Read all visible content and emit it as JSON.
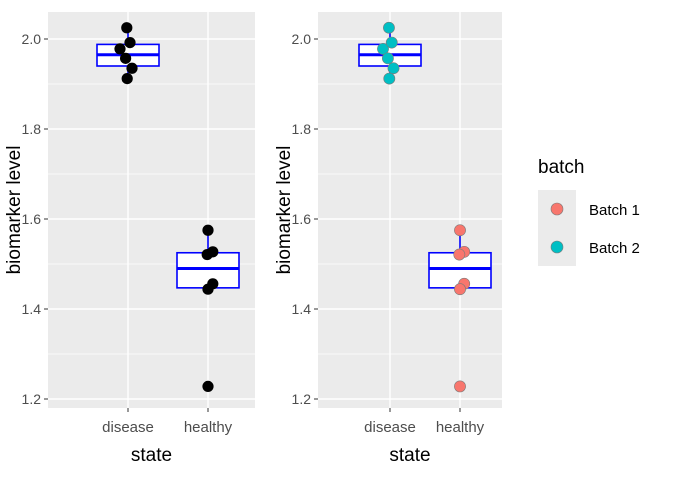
{
  "chart_data": [
    {
      "type": "boxplot",
      "xlabel": "state",
      "ylabel": "biomarker level",
      "categories": [
        "disease",
        "healthy"
      ],
      "ylim": [
        1.18,
        2.06
      ],
      "yticks": [
        1.2,
        1.4,
        1.6,
        1.8,
        2.0
      ],
      "ytick_labels": [
        "1.2",
        "1.4",
        "1.6",
        "1.8",
        "2.0"
      ],
      "boxes": [
        {
          "category": "disease",
          "q1": 1.94,
          "median": 1.965,
          "q3": 1.988,
          "whisker_low": 1.91,
          "whisker_high": 2.025
        },
        {
          "category": "healthy",
          "q1": 1.447,
          "median": 1.49,
          "q3": 1.525,
          "whisker_low": 1.445,
          "whisker_high": 1.575
        }
      ],
      "points": [
        {
          "category": "disease",
          "jitter": -0.03,
          "y": 2.025,
          "batch": "Batch 2"
        },
        {
          "category": "disease",
          "jitter": -0.2,
          "y": 1.978,
          "batch": "Batch 2"
        },
        {
          "category": "disease",
          "jitter": 0.05,
          "y": 1.992,
          "batch": "Batch 2"
        },
        {
          "category": "disease",
          "jitter": -0.06,
          "y": 1.957,
          "batch": "Batch 2"
        },
        {
          "category": "disease",
          "jitter": 0.1,
          "y": 1.935,
          "batch": "Batch 2"
        },
        {
          "category": "disease",
          "jitter": -0.02,
          "y": 1.912,
          "batch": "Batch 2"
        },
        {
          "category": "healthy",
          "jitter": 0.0,
          "y": 1.575,
          "batch": "Batch 1"
        },
        {
          "category": "healthy",
          "jitter": 0.12,
          "y": 1.527,
          "batch": "Batch 1"
        },
        {
          "category": "healthy",
          "jitter": -0.02,
          "y": 1.521,
          "batch": "Batch 1"
        },
        {
          "category": "healthy",
          "jitter": 0.12,
          "y": 1.456,
          "batch": "Batch 1"
        },
        {
          "category": "healthy",
          "jitter": 0.0,
          "y": 1.444,
          "batch": "Batch 1"
        },
        {
          "category": "healthy",
          "jitter": 0.0,
          "y": 1.228,
          "batch": "Batch 1"
        }
      ],
      "colored_by_batch": false,
      "point_color": "#000000",
      "box_color": "#0000ff",
      "panel_bg": "#ebebeb"
    },
    {
      "type": "boxplot",
      "xlabel": "state",
      "ylabel": "biomarker level",
      "categories": [
        "disease",
        "healthy"
      ],
      "ylim": [
        1.18,
        2.06
      ],
      "yticks": [
        1.2,
        1.4,
        1.6,
        1.8,
        2.0
      ],
      "ytick_labels": [
        "1.2",
        "1.4",
        "1.6",
        "1.8",
        "2.0"
      ],
      "boxes": [
        {
          "category": "disease",
          "q1": 1.94,
          "median": 1.965,
          "q3": 1.988,
          "whisker_low": 1.91,
          "whisker_high": 2.025
        },
        {
          "category": "healthy",
          "q1": 1.447,
          "median": 1.49,
          "q3": 1.525,
          "whisker_low": 1.445,
          "whisker_high": 1.575
        }
      ],
      "points": [
        {
          "category": "disease",
          "jitter": -0.03,
          "y": 2.025,
          "batch": "Batch 2"
        },
        {
          "category": "disease",
          "jitter": -0.2,
          "y": 1.978,
          "batch": "Batch 2"
        },
        {
          "category": "disease",
          "jitter": 0.05,
          "y": 1.992,
          "batch": "Batch 2"
        },
        {
          "category": "disease",
          "jitter": -0.06,
          "y": 1.957,
          "batch": "Batch 2"
        },
        {
          "category": "disease",
          "jitter": 0.1,
          "y": 1.935,
          "batch": "Batch 2"
        },
        {
          "category": "disease",
          "jitter": -0.02,
          "y": 1.912,
          "batch": "Batch 2"
        },
        {
          "category": "healthy",
          "jitter": 0.0,
          "y": 1.575,
          "batch": "Batch 1"
        },
        {
          "category": "healthy",
          "jitter": 0.12,
          "y": 1.527,
          "batch": "Batch 1"
        },
        {
          "category": "healthy",
          "jitter": -0.02,
          "y": 1.521,
          "batch": "Batch 1"
        },
        {
          "category": "healthy",
          "jitter": 0.12,
          "y": 1.456,
          "batch": "Batch 1"
        },
        {
          "category": "healthy",
          "jitter": 0.0,
          "y": 1.444,
          "batch": "Batch 1"
        },
        {
          "category": "healthy",
          "jitter": 0.0,
          "y": 1.228,
          "batch": "Batch 1"
        }
      ],
      "colored_by_batch": true,
      "box_color": "#0000ff",
      "panel_bg": "#ebebeb"
    }
  ],
  "legend": {
    "title": "batch",
    "entries": [
      {
        "label": "Batch 1",
        "color": "#f8766d"
      },
      {
        "label": "Batch 2",
        "color": "#00bfc4"
      }
    ]
  }
}
